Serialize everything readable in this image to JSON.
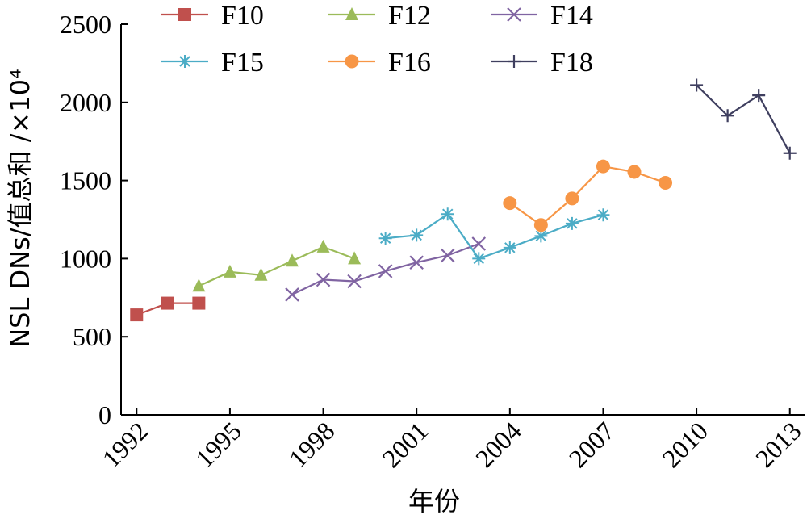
{
  "chart_data": {
    "type": "line",
    "title": "",
    "xlabel": "年份",
    "ylabel": "NSL DNs/值总和 /×10⁴",
    "ylim": [
      0,
      2500
    ],
    "xlim": [
      1991.5,
      2013.5
    ],
    "x_ticks": [
      "1992",
      "1995",
      "1998",
      "2001",
      "2004",
      "2007",
      "2010",
      "2013"
    ],
    "y_ticks": [
      "0",
      "500",
      "1000",
      "1500",
      "2000",
      "2500"
    ],
    "grid": false,
    "legend_position": "top",
    "series": [
      {
        "name": "F10",
        "color": "#c0504d",
        "marker": "square",
        "x": [
          1992,
          1993,
          1994
        ],
        "y": [
          640,
          715,
          715
        ]
      },
      {
        "name": "F12",
        "color": "#9bbb59",
        "marker": "triangle",
        "x": [
          1994,
          1995,
          1996,
          1997,
          1998,
          1999
        ],
        "y": [
          825,
          915,
          895,
          985,
          1075,
          1000
        ]
      },
      {
        "name": "F14",
        "color": "#8064a2",
        "marker": "x",
        "x": [
          1997,
          1998,
          1999,
          2000,
          2001,
          2002,
          2003
        ],
        "y": [
          770,
          865,
          855,
          920,
          975,
          1020,
          1095
        ]
      },
      {
        "name": "F15",
        "color": "#4bacc6",
        "marker": "asterisk",
        "x": [
          2000,
          2001,
          2002,
          2003,
          2004,
          2005,
          2006,
          2007
        ],
        "y": [
          1130,
          1150,
          1285,
          1000,
          1070,
          1145,
          1225,
          1280
        ]
      },
      {
        "name": "F16",
        "color": "#f79646",
        "marker": "circle",
        "x": [
          2004,
          2005,
          2006,
          2007,
          2008,
          2009
        ],
        "y": [
          1355,
          1215,
          1385,
          1590,
          1555,
          1485
        ]
      },
      {
        "name": "F18",
        "color": "#3f3f5f",
        "marker": "plus",
        "x": [
          2010,
          2011,
          2012,
          2013
        ],
        "y": [
          2110,
          1915,
          2045,
          1675
        ]
      }
    ]
  }
}
